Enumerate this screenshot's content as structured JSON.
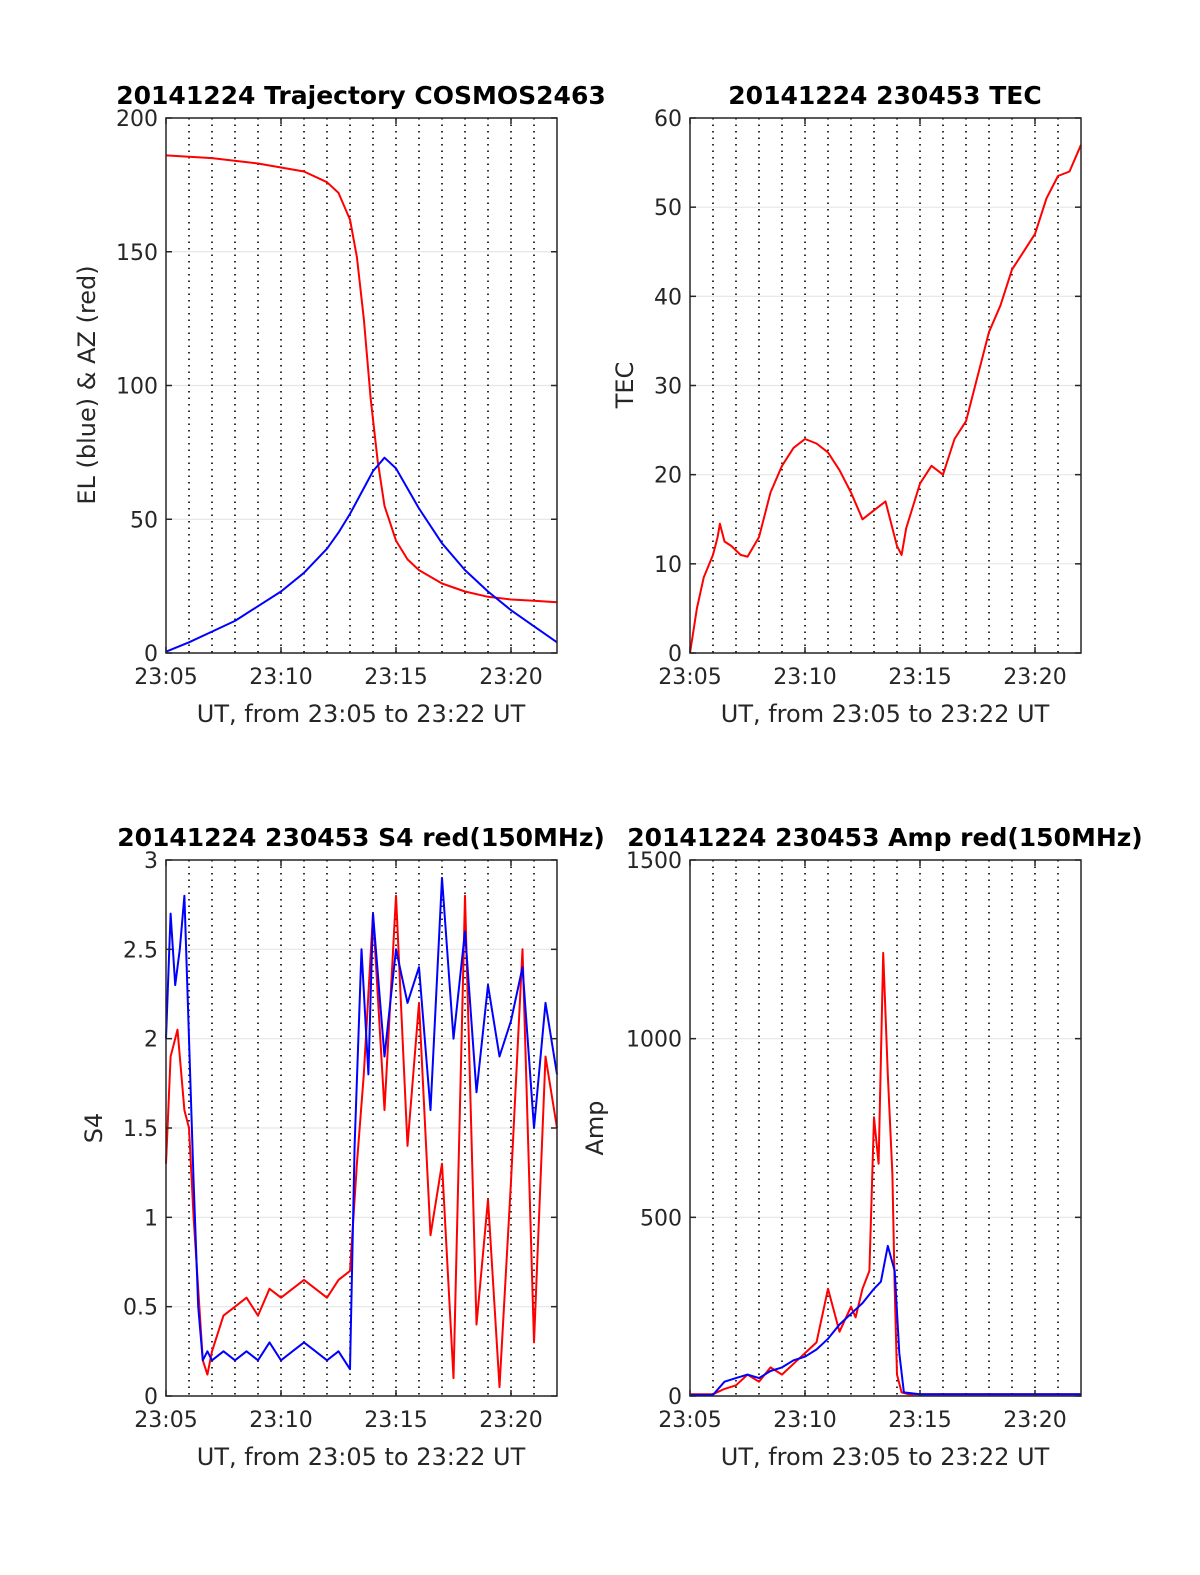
{
  "chart_data": [
    {
      "id": "trajectory",
      "type": "line",
      "title": "20141224 Trajectory COSMOS2463",
      "xlabel": "UT, from 23:05 to 23:22 UT",
      "ylabel": "EL (blue) & AZ (red)",
      "xlim": [
        0,
        17
      ],
      "ylim": [
        0,
        200
      ],
      "x_ticks": [
        0,
        5,
        10,
        15
      ],
      "x_tick_labels": [
        "23:05",
        "23:10",
        "23:15",
        "23:20"
      ],
      "y_ticks": [
        0,
        50,
        100,
        150,
        200
      ],
      "y_tick_labels": [
        "0",
        "50",
        "100",
        "150",
        "200"
      ],
      "x_unit": "minutes after 23:05 UT",
      "grid": true,
      "series": [
        {
          "color": "#ff0000",
          "x": [
            0,
            2,
            4,
            6,
            7,
            7.5,
            8,
            8.3,
            8.6,
            8.9,
            9.2,
            9.5,
            10,
            10.5,
            11,
            12,
            13,
            14,
            15,
            16,
            17
          ],
          "y": [
            186,
            185,
            183,
            180,
            176,
            172,
            162,
            148,
            125,
            95,
            72,
            55,
            42,
            35,
            31,
            26,
            23,
            21,
            20,
            19.5,
            19
          ]
        },
        {
          "color": "#0000ff",
          "x": [
            0,
            1,
            2,
            3,
            4,
            5,
            6,
            7,
            7.5,
            8,
            8.5,
            9,
            9.5,
            10,
            11,
            12,
            13,
            14,
            15,
            16,
            17
          ],
          "y": [
            0.5,
            4,
            8,
            12,
            17.5,
            23,
            30,
            39,
            45,
            52,
            60,
            68,
            73,
            69,
            54,
            41,
            31,
            23,
            16,
            10,
            4
          ]
        }
      ]
    },
    {
      "id": "tec",
      "type": "line",
      "title": "20141224 230453 TEC",
      "xlabel": "UT, from 23:05 to 23:22 UT",
      "ylabel": "TEC",
      "xlim": [
        0,
        17
      ],
      "ylim": [
        0,
        60
      ],
      "x_ticks": [
        0,
        5,
        10,
        15
      ],
      "x_tick_labels": [
        "23:05",
        "23:10",
        "23:15",
        "23:20"
      ],
      "y_ticks": [
        0,
        10,
        20,
        30,
        40,
        50,
        60
      ],
      "y_tick_labels": [
        "0",
        "10",
        "20",
        "30",
        "40",
        "50",
        "60"
      ],
      "x_unit": "minutes after 23:05 UT",
      "grid": true,
      "series": [
        {
          "color": "#ff0000",
          "x": [
            0,
            0.3,
            0.6,
            1.0,
            1.2,
            1.3,
            1.5,
            1.8,
            2.2,
            2.5,
            3.0,
            3.5,
            4.0,
            4.5,
            5.0,
            5.5,
            6.0,
            6.5,
            7.0,
            7.5,
            8.0,
            8.5,
            9.0,
            9.2,
            9.4,
            10.0,
            10.5,
            11.0,
            11.5,
            12.0,
            12.5,
            13.0,
            13.5,
            14.0,
            14.5,
            15.0,
            15.5,
            16.0,
            16.5,
            17.0
          ],
          "y": [
            0,
            5,
            8.5,
            11,
            13,
            14.5,
            12.5,
            12,
            11,
            10.8,
            13,
            18,
            21,
            23,
            24,
            23.5,
            22.5,
            20.5,
            18,
            15,
            16,
            17,
            12,
            11,
            14,
            19,
            21,
            20,
            24,
            26,
            31,
            36,
            39,
            43,
            45,
            47,
            51,
            53.5,
            54,
            57
          ]
        }
      ]
    },
    {
      "id": "s4",
      "type": "line",
      "title": "20141224 230453 S4 red(150MHz)",
      "xlabel": "UT, from 23:05 to 23:22 UT",
      "ylabel": "S4",
      "xlim": [
        0,
        17
      ],
      "ylim": [
        0,
        3
      ],
      "x_ticks": [
        0,
        5,
        10,
        15
      ],
      "x_tick_labels": [
        "23:05",
        "23:10",
        "23:15",
        "23:20"
      ],
      "y_ticks": [
        0,
        0.5,
        1,
        1.5,
        2,
        2.5,
        3
      ],
      "y_tick_labels": [
        "0",
        "0.5",
        "1",
        "1.5",
        "2",
        "2.5",
        "3"
      ],
      "x_unit": "minutes after 23:05 UT",
      "grid": true,
      "series": [
        {
          "color": "#ff0000",
          "x": [
            0,
            0.2,
            0.5,
            0.8,
            1.0,
            1.2,
            1.4,
            1.6,
            1.8,
            2.0,
            2.5,
            3.0,
            3.5,
            4.0,
            4.5,
            5.0,
            5.5,
            6.0,
            6.5,
            7.0,
            7.5,
            8.0,
            8.3,
            8.6,
            9.0,
            9.5,
            10.0,
            10.5,
            11.0,
            11.5,
            12.0,
            12.5,
            13.0,
            13.5,
            14.0,
            14.5,
            15.0,
            15.5,
            16.0,
            16.5,
            17.0
          ],
          "y": [
            1.3,
            1.9,
            2.05,
            1.6,
            1.5,
            1.0,
            0.6,
            0.2,
            0.12,
            0.25,
            0.45,
            0.5,
            0.55,
            0.45,
            0.6,
            0.55,
            0.6,
            0.65,
            0.6,
            0.55,
            0.65,
            0.7,
            1.3,
            1.8,
            2.7,
            1.6,
            2.8,
            1.4,
            2.2,
            0.9,
            1.3,
            0.1,
            2.8,
            0.4,
            1.1,
            0.05,
            1.2,
            2.5,
            0.3,
            1.9,
            1.5
          ]
        },
        {
          "color": "#0000ff",
          "x": [
            0,
            0.2,
            0.4,
            0.6,
            0.8,
            1.0,
            1.2,
            1.4,
            1.6,
            1.8,
            2.0,
            2.5,
            3.0,
            3.5,
            4.0,
            4.5,
            5.0,
            5.5,
            6.0,
            6.5,
            7.0,
            7.5,
            8.0,
            8.2,
            8.5,
            8.8,
            9.0,
            9.5,
            10.0,
            10.5,
            11.0,
            11.5,
            12.0,
            12.5,
            13.0,
            13.5,
            14.0,
            14.5,
            15.0,
            15.5,
            16.0,
            16.5,
            17.0
          ],
          "y": [
            2.0,
            2.7,
            2.3,
            2.5,
            2.8,
            2.0,
            1.2,
            0.5,
            0.2,
            0.25,
            0.2,
            0.25,
            0.2,
            0.25,
            0.2,
            0.3,
            0.2,
            0.25,
            0.3,
            0.25,
            0.2,
            0.25,
            0.15,
            1.4,
            2.5,
            1.8,
            2.7,
            1.9,
            2.5,
            2.2,
            2.4,
            1.6,
            2.9,
            2.0,
            2.6,
            1.7,
            2.3,
            1.9,
            2.1,
            2.4,
            1.5,
            2.2,
            1.8
          ]
        }
      ]
    },
    {
      "id": "amp",
      "type": "line",
      "title": "20141224 230453 Amp red(150MHz)",
      "xlabel": "UT, from 23:05 to 23:22 UT",
      "ylabel": "Amp",
      "xlim": [
        0,
        17
      ],
      "ylim": [
        0,
        1500
      ],
      "x_ticks": [
        0,
        5,
        10,
        15
      ],
      "x_tick_labels": [
        "23:05",
        "23:10",
        "23:15",
        "23:20"
      ],
      "y_ticks": [
        0,
        500,
        1000,
        1500
      ],
      "y_tick_labels": [
        "0",
        "500",
        "1000",
        "1500"
      ],
      "x_unit": "minutes after 23:05 UT",
      "grid": true,
      "series": [
        {
          "color": "#ff0000",
          "x": [
            0,
            1,
            1.5,
            2,
            2.5,
            3,
            3.5,
            4,
            4.5,
            5,
            5.5,
            6,
            6.5,
            7,
            7.2,
            7.5,
            7.8,
            8.0,
            8.2,
            8.4,
            8.6,
            8.8,
            8.9,
            9.0,
            9.2,
            9.5,
            10,
            12,
            14,
            17
          ],
          "y": [
            5,
            5,
            20,
            30,
            60,
            40,
            80,
            60,
            90,
            120,
            150,
            300,
            180,
            250,
            220,
            300,
            350,
            780,
            650,
            1240,
            900,
            620,
            300,
            60,
            10,
            5,
            5,
            5,
            5,
            5
          ]
        },
        {
          "color": "#0000ff",
          "x": [
            0,
            1,
            1.5,
            2,
            2.5,
            3,
            3.5,
            4,
            4.5,
            5,
            5.5,
            6,
            6.5,
            7,
            7.5,
            8,
            8.3,
            8.6,
            8.9,
            9.1,
            9.3,
            10,
            12,
            14,
            17
          ],
          "y": [
            3,
            3,
            40,
            50,
            60,
            50,
            70,
            80,
            100,
            110,
            130,
            160,
            200,
            230,
            260,
            300,
            320,
            420,
            350,
            120,
            10,
            5,
            5,
            5,
            5
          ]
        }
      ]
    }
  ]
}
